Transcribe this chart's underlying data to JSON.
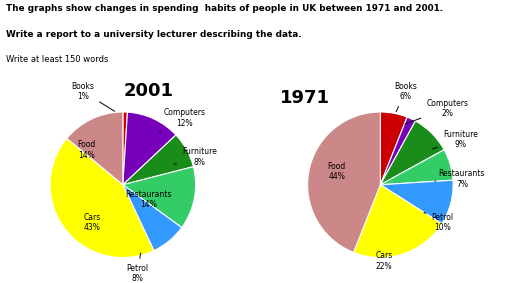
{
  "title_line1": "The graphs show changes in spending  habits of people in UK between 1971 and 2001.",
  "title_line2": "Write a report to a university lecturer describing the data.",
  "title_line3": "Write at least 150 words",
  "chart2001": {
    "year": "2001",
    "labels": [
      "Books",
      "Computers",
      "Furniture",
      "Restaurants",
      "Petrol",
      "Cars",
      "Food"
    ],
    "values": [
      1,
      12,
      8,
      14,
      8,
      43,
      14
    ],
    "colors": [
      "#cc0000",
      "#7700bb",
      "#1a8c1a",
      "#33cc66",
      "#3399ff",
      "#ffff00",
      "#cc8888"
    ]
  },
  "chart1971": {
    "year": "1971",
    "labels": [
      "Books",
      "Computers",
      "Furniture",
      "Restaurants",
      "Petrol",
      "Cars",
      "Food"
    ],
    "values": [
      6,
      2,
      9,
      7,
      10,
      22,
      44
    ],
    "colors": [
      "#cc0000",
      "#7700bb",
      "#1a8c1a",
      "#33cc66",
      "#3399ff",
      "#ffff00",
      "#cc8888"
    ]
  },
  "bg_color": "#ffffff",
  "text_color": "#000000",
  "annotations2001": [
    {
      "label": "Books",
      "pct": "1%",
      "xt": -0.55,
      "yt": 1.28,
      "xw": -0.08,
      "yw": 0.99
    },
    {
      "label": "Computers",
      "pct": "12%",
      "xt": 0.85,
      "yt": 0.92,
      "xw": 0.5,
      "yw": 0.72
    },
    {
      "label": "Furniture",
      "pct": "8%",
      "xt": 1.05,
      "yt": 0.38,
      "xw": 0.7,
      "yw": 0.28
    },
    {
      "label": "Restaurants",
      "pct": "14%",
      "xt": 0.35,
      "yt": -0.2,
      "xw": 0.35,
      "yw": -0.2
    },
    {
      "label": "Petrol",
      "pct": "8%",
      "xt": 0.2,
      "yt": -1.22,
      "xw": 0.25,
      "yw": -0.9
    },
    {
      "label": "Cars",
      "pct": "43%",
      "xt": -0.42,
      "yt": -0.52,
      "xw": -0.42,
      "yw": -0.52
    },
    {
      "label": "Food",
      "pct": "14%",
      "xt": -0.5,
      "yt": 0.48,
      "xw": -0.5,
      "yw": 0.48
    }
  ],
  "annotations1971": [
    {
      "label": "Books",
      "pct": "6%",
      "xt": 0.35,
      "yt": 1.28,
      "xw": 0.2,
      "yw": 0.97
    },
    {
      "label": "Computers",
      "pct": "2%",
      "xt": 0.92,
      "yt": 1.05,
      "xw": 0.3,
      "yw": 0.82
    },
    {
      "label": "Furniture",
      "pct": "9%",
      "xt": 1.1,
      "yt": 0.62,
      "xw": 0.68,
      "yw": 0.48
    },
    {
      "label": "Restaurants",
      "pct": "7%",
      "xt": 1.12,
      "yt": 0.08,
      "xw": 0.75,
      "yw": 0.05
    },
    {
      "label": "Petrol",
      "pct": "10%",
      "xt": 0.85,
      "yt": -0.52,
      "xw": 0.6,
      "yw": -0.38
    },
    {
      "label": "Cars",
      "pct": "22%",
      "xt": 0.05,
      "yt": -1.05,
      "xw": 0.05,
      "yw": -0.78
    },
    {
      "label": "Food",
      "pct": "44%",
      "xt": -0.6,
      "yt": 0.18,
      "xw": -0.6,
      "yw": 0.18
    }
  ]
}
